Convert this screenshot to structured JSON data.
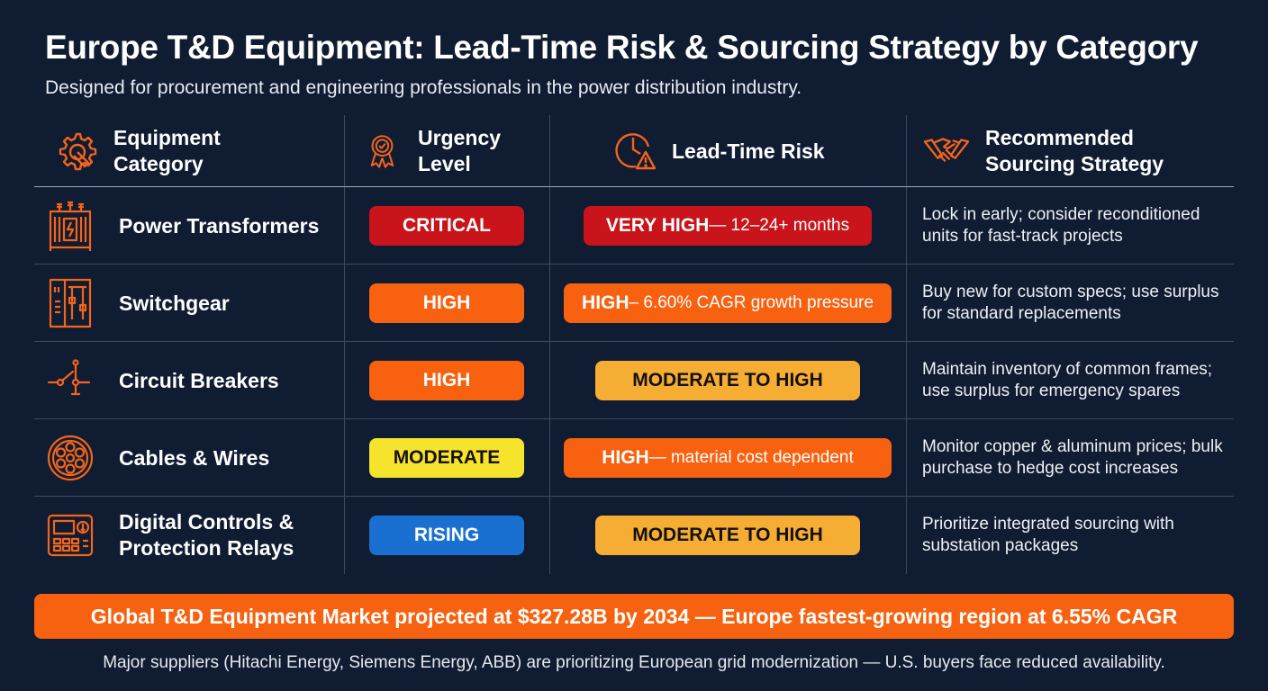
{
  "title": "Europe T&D Equipment: Lead-Time Risk & Sourcing Strategy by Category",
  "subtitle": "Designed for procurement and engineering professionals in the power distribution industry.",
  "colors": {
    "background": "#101c31",
    "accent": "#f6620f",
    "critical": "#c8141a",
    "high": "#f7610f",
    "moderate_to_high": "#f6ad33",
    "moderate": "#f6e32c",
    "rising": "#1a70d1"
  },
  "headers": {
    "category": {
      "icon": "gear-wrench-icon",
      "line1": "Equipment",
      "line2": "Category"
    },
    "urgency": {
      "icon": "award-ribbon-icon",
      "line1": "Urgency",
      "line2": "Level"
    },
    "risk": {
      "icon": "clock-warning-icon",
      "label": "Lead-Time Risk"
    },
    "strategy": {
      "icon": "handshake-icon",
      "line1": "Recommended",
      "line2": "Sourcing Strategy"
    }
  },
  "rows": [
    {
      "category_icon": "transformer-icon",
      "category_line1": "Power Transformers",
      "category_line2": "",
      "urgency": "CRITICAL",
      "urgency_color": "red",
      "risk_main": "VERY HIGH",
      "risk_rest": " — 12–24+ months",
      "risk_color": "red",
      "strategy": "Lock in early; consider reconditioned units for fast-track projects"
    },
    {
      "category_icon": "switchgear-icon",
      "category_line1": "Switchgear",
      "category_line2": "",
      "urgency": "HIGH",
      "urgency_color": "orange",
      "risk_main": "HIGH",
      "risk_rest": " – 6.60% CAGR growth pressure",
      "risk_color": "orange",
      "strategy": "Buy new for custom specs; use surplus for standard replacements"
    },
    {
      "category_icon": "circuit-breaker-icon",
      "category_line1": "Circuit Breakers",
      "category_line2": "",
      "urgency": "HIGH",
      "urgency_color": "orange",
      "risk_main": "MODERATE TO HIGH",
      "risk_rest": "",
      "risk_color": "amber",
      "strategy": "Maintain inventory of common frames; use surplus for emergency spares"
    },
    {
      "category_icon": "cable-icon",
      "category_line1": "Cables & Wires",
      "category_line2": "",
      "urgency": "MODERATE",
      "urgency_color": "yellow",
      "risk_main": "HIGH",
      "risk_rest": " — material cost dependent",
      "risk_color": "orange",
      "strategy": "Monitor copper & aluminum prices; bulk purchase to hedge cost increases"
    },
    {
      "category_icon": "relay-panel-icon",
      "category_line1": "Digital Controls &",
      "category_line2": "Protection Relays",
      "urgency": "RISING",
      "urgency_color": "blue",
      "risk_main": "MODERATE TO HIGH",
      "risk_rest": "",
      "risk_color": "amber",
      "strategy": "Prioritize integrated sourcing with substation packages"
    }
  ],
  "banner": "Global T&D Equipment Market projected at $327.28B by 2034 — Europe fastest-growing region at 6.55% CAGR",
  "footer": "Major suppliers (Hitachi Energy, Siemens Energy, ABB) are prioritizing European grid modernization — U.S. buyers face reduced availability."
}
